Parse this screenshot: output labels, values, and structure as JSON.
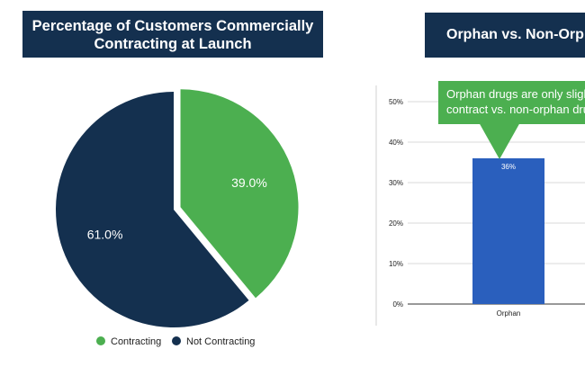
{
  "chart_data": [
    {
      "type": "pie",
      "title": "Percentage of Customers Commercially Contracting at Launch",
      "title_lines": [
        "Percentage of Customers Commercially",
        "Contracting at Launch"
      ],
      "slices": [
        {
          "label": "Contracting",
          "value": 39.0,
          "display": "39.0%",
          "color": "#4caf50"
        },
        {
          "label": "Not Contracting",
          "value": 61.0,
          "display": "61.0%",
          "color": "#14304f"
        }
      ],
      "legend_position": "bottom"
    },
    {
      "type": "bar",
      "title": "Orphan vs. Non-Orp",
      "categories": [
        "Orphan"
      ],
      "values": [
        36
      ],
      "value_labels": [
        "36%"
      ],
      "ylim": [
        0,
        50
      ],
      "yticks": [
        "0%",
        "10%",
        "20%",
        "30%",
        "40%",
        "50%"
      ],
      "grid": true,
      "bar_color": "#2a5fbd",
      "annotation": [
        "Orphan drugs are only slighth",
        "contract vs. non-orphan drug"
      ]
    }
  ]
}
